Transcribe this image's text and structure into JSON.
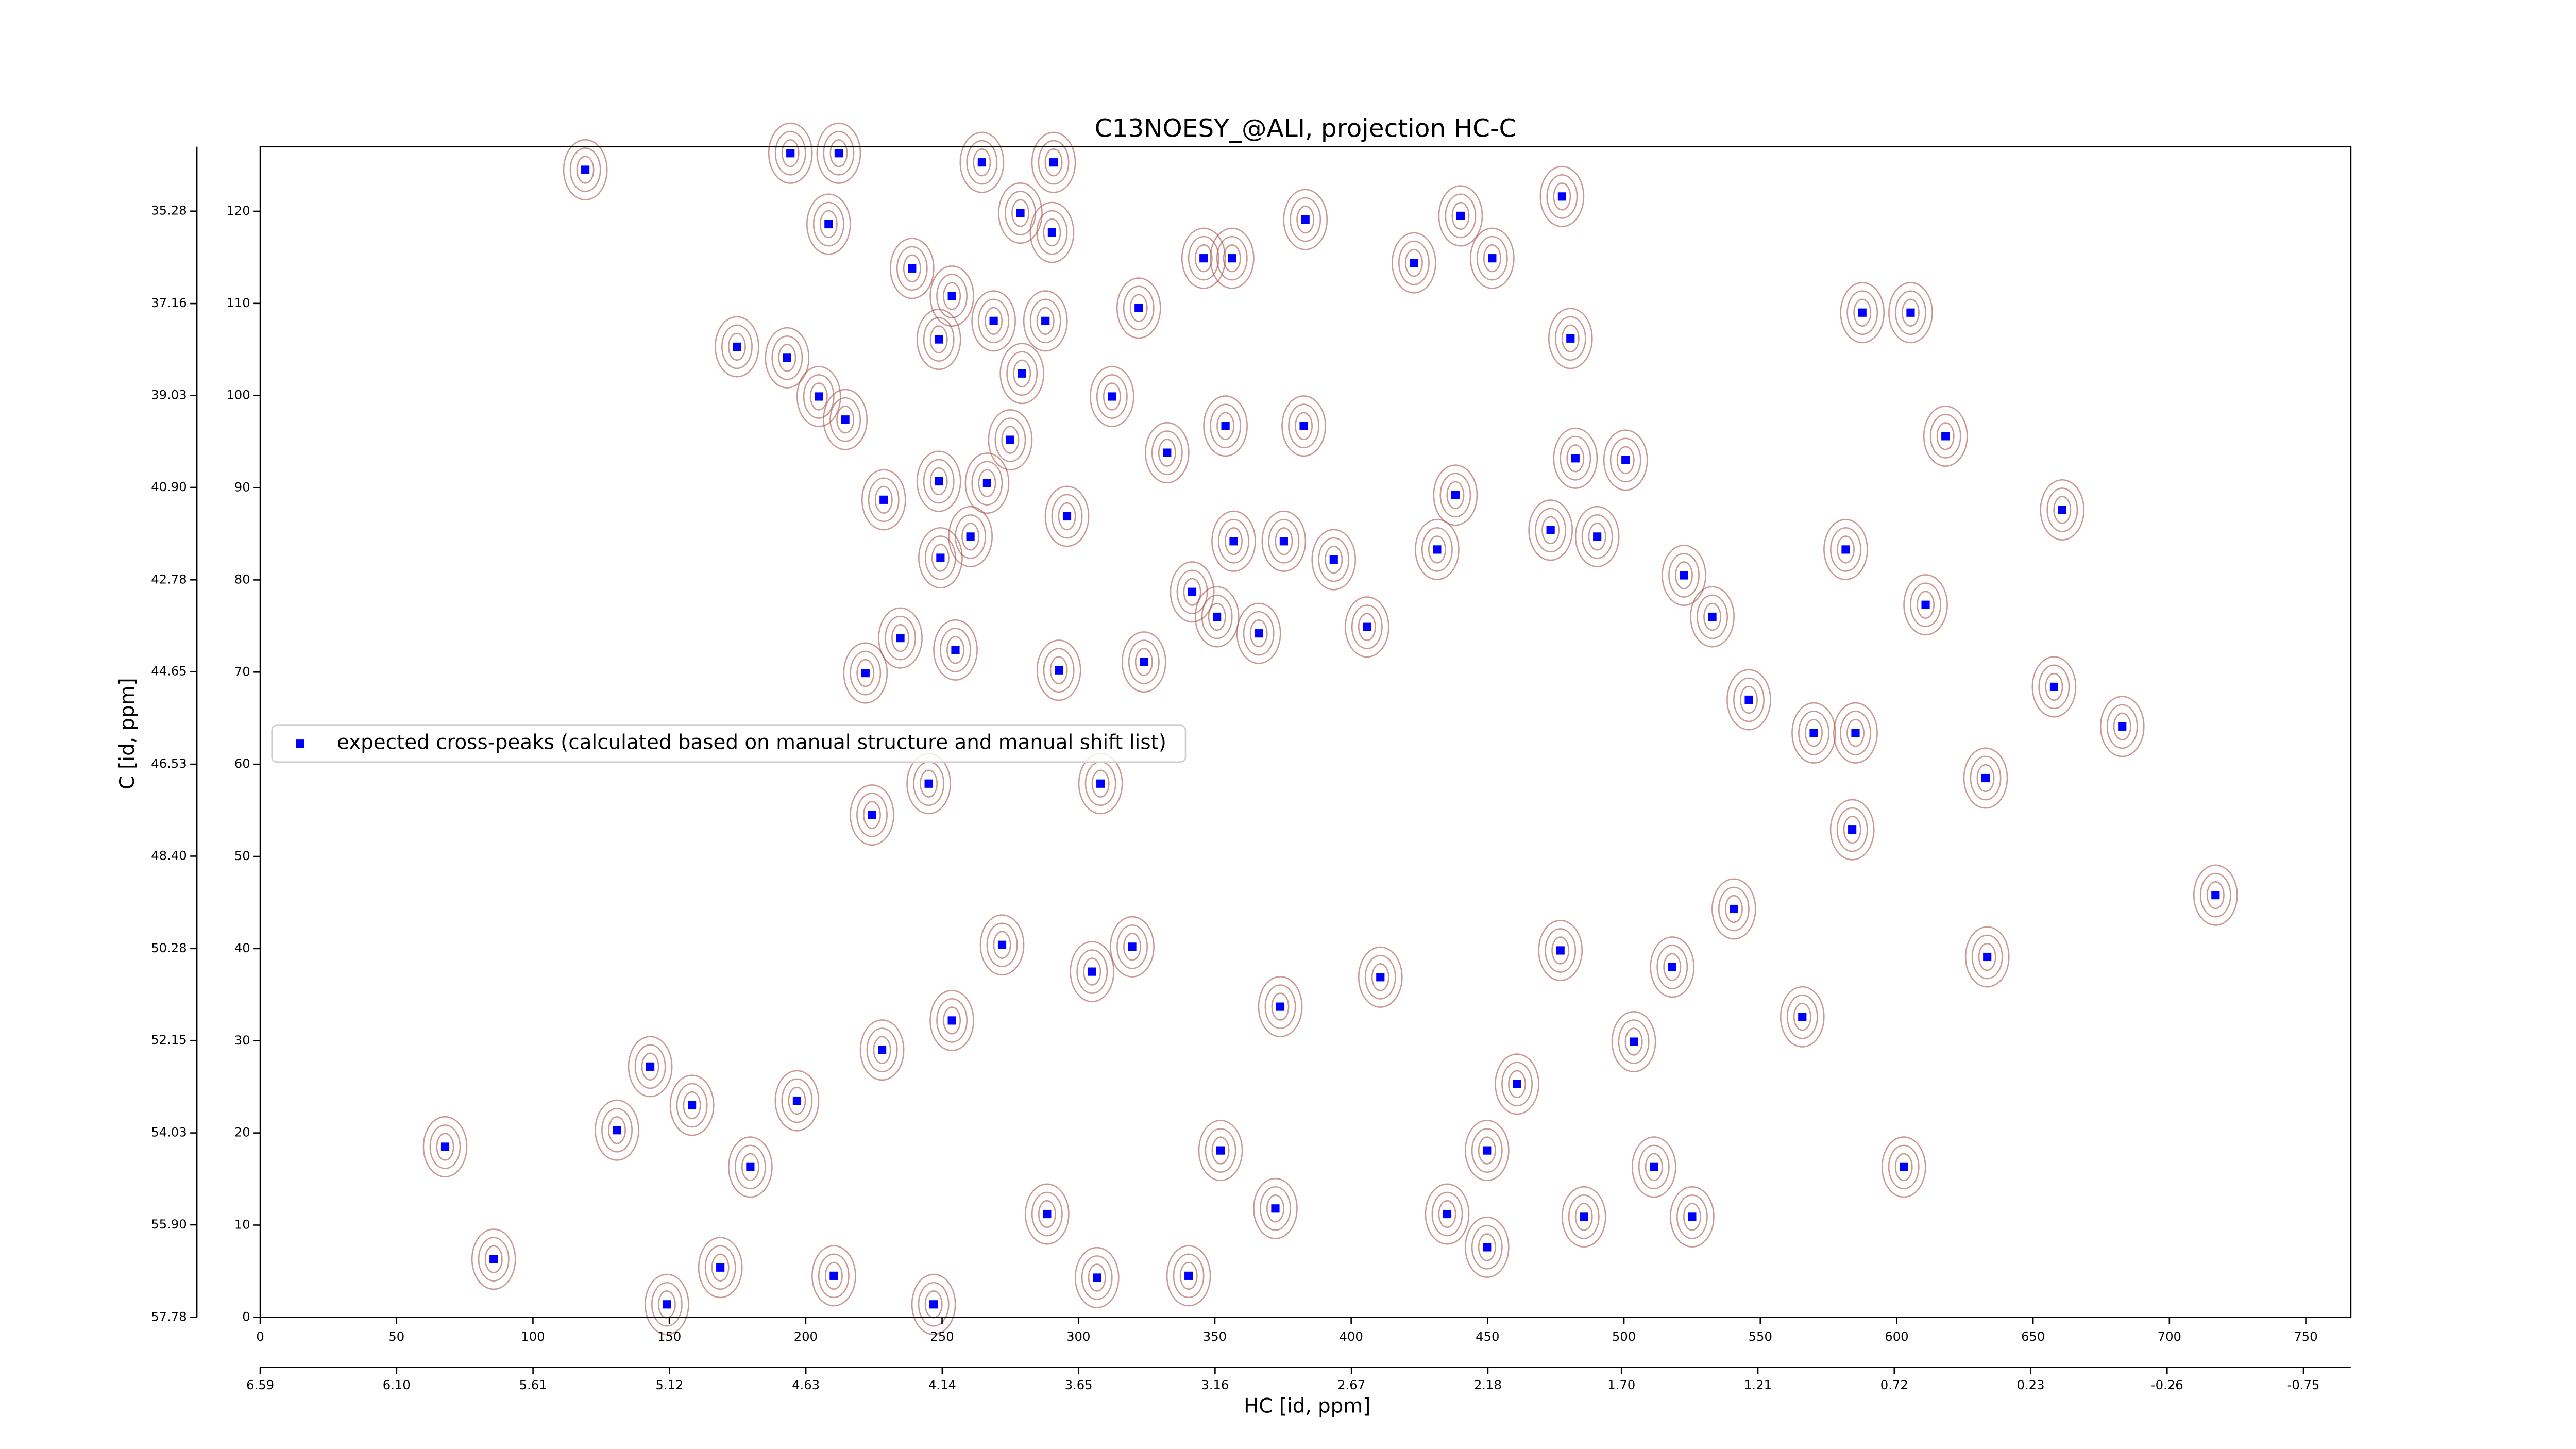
{
  "chart_data": {
    "type": "scatter",
    "title": "C13NOESY_@ALI, projection HC-C",
    "x_label": "HC [id, ppm]",
    "y_label": "C [id, ppm]",
    "legend": "center left",
    "series": [
      {
        "name": "expected cross-peaks (calculated based on manual structure and manual shift list)",
        "color": "#0000ff",
        "x": [
          119.2,
          194.4,
          212.1,
          264.6,
          278.7,
          290.9,
          290.3,
          287.9,
          208.4,
          239.0,
          253.6,
          248.8,
          268.9,
          279.3,
          275.0,
          266.5,
          204.8,
          214.5,
          228.6,
          248.8,
          249.4,
          260.4,
          295.8,
          312.3,
          322.1,
          345.9,
          356.3,
          383.2,
          332.5,
          353.9,
          382.6,
          356.9,
          375.3,
          393.6,
          341.7,
          350.8,
          366.1,
          405.8,
          431.5,
          423.0,
          440.1,
          451.7,
          480.4,
          477.3,
          438.2,
          482.2,
          500.6,
          473.1,
          490.2,
          522.0,
          532.4,
          545.8,
          569.6,
          584.9,
          610.6,
          617.9,
          587.4,
          605.1,
          581.3,
          660.7,
          657.7,
          682.7,
          632.6,
          716.9,
          633.2,
          602.6,
          583.7,
          565.4,
          540.3,
          517.7,
          503.6,
          476.7,
          460.8,
          449.8,
          435.2,
          449.8,
          485.3,
          525.0,
          511.0,
          410.7,
          374.0,
          352.1,
          372.2,
          340.4,
          306.8,
          288.5,
          246.9,
          210.3,
          179.7,
          168.7,
          149.1,
          143.0,
          130.8,
          85.6,
          67.8,
          158.3,
          196.8,
          228.0,
          253.6,
          272.0,
          305.0,
          319.7,
          245.1,
          224.3,
          221.9,
          254.9,
          292.8,
          324.0,
          308.1,
          193.2,
          174.8,
          234.7
        ],
        "values": [
          124.5,
          126.3,
          126.3,
          125.3,
          119.8,
          125.3,
          117.7,
          108.1,
          118.6,
          113.8,
          110.8,
          106.1,
          108.1,
          102.4,
          95.2,
          90.5,
          99.9,
          97.4,
          88.7,
          90.7,
          82.4,
          84.7,
          86.9,
          99.9,
          109.5,
          114.9,
          114.9,
          119.1,
          93.8,
          96.7,
          96.7,
          84.2,
          84.2,
          82.2,
          78.7,
          76.0,
          74.2,
          74.9,
          83.3,
          114.4,
          119.5,
          114.9,
          106.2,
          121.6,
          89.2,
          93.2,
          93.0,
          85.4,
          84.7,
          80.5,
          76.0,
          67.0,
          63.4,
          63.4,
          77.3,
          95.6,
          109.0,
          109.0,
          83.3,
          87.6,
          68.4,
          64.1,
          58.5,
          45.8,
          39.1,
          16.3,
          52.9,
          32.6,
          44.3,
          38.0,
          29.9,
          39.8,
          25.3,
          18.1,
          11.2,
          7.6,
          10.9,
          10.9,
          16.3,
          36.9,
          33.7,
          18.1,
          11.8,
          4.5,
          4.3,
          11.2,
          1.4,
          4.5,
          16.3,
          5.4,
          1.4,
          27.2,
          20.3,
          6.3,
          18.5,
          23.0,
          23.5,
          29.0,
          32.2,
          40.4,
          37.5,
          40.2,
          57.9,
          54.5,
          69.9,
          72.4,
          70.2,
          71.1,
          57.9,
          104.1,
          105.3,
          73.7
        ]
      }
    ],
    "contour_color": "#a0453a",
    "xlim": [
      0,
      766.5
    ],
    "ylim": [
      0,
      127
    ],
    "xticks": [
      0,
      50,
      100,
      150,
      200,
      250,
      300,
      350,
      400,
      450,
      500,
      550,
      600,
      650,
      700,
      750
    ],
    "yticks": [
      0,
      10,
      20,
      30,
      40,
      50,
      60,
      70,
      80,
      90,
      100,
      110,
      120
    ],
    "x2lim": [
      6.59,
      -0.92
    ],
    "x2ticks": [
      6.59,
      {
        "value": 6.1,
        "label": "6.10"
      },
      5.61,
      5.12,
      4.63,
      4.14,
      3.65,
      3.16,
      2.67,
      2.18,
      {
        "value": 1.7,
        "label": "1.70"
      },
      1.21,
      0.72,
      0.23,
      -0.26,
      -0.75
    ],
    "y2lim": [
      57.78,
      33.97
    ],
    "y2ticks": [
      57.78,
      {
        "value": 55.9,
        "label": "55.90"
      },
      54.03,
      52.15,
      50.28,
      {
        "value": 48.4,
        "label": "48.40"
      },
      46.53,
      44.65,
      42.78,
      {
        "value": 40.9,
        "label": "40.90"
      },
      39.03,
      37.16,
      35.28
    ]
  }
}
